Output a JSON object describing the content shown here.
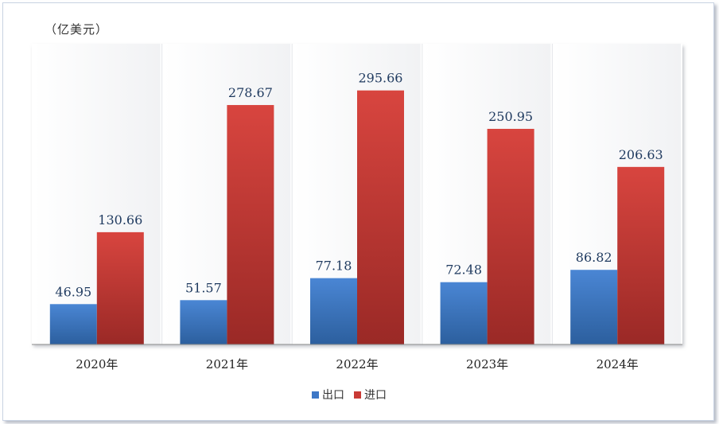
{
  "chart_data": {
    "type": "bar",
    "unit_label": "（亿美元）",
    "categories": [
      "2020年",
      "2021年",
      "2022年",
      "2023年",
      "2024年"
    ],
    "series": [
      {
        "name": "出口",
        "values": [
          46.95,
          51.57,
          77.18,
          72.48,
          86.82
        ],
        "color": "#3d77c6"
      },
      {
        "name": "进口",
        "values": [
          130.66,
          278.67,
          295.66,
          250.95,
          206.63
        ],
        "color": "#c93a35"
      }
    ],
    "ylim": [
      0,
      350
    ],
    "grid": false,
    "legend_position": "bottom"
  }
}
